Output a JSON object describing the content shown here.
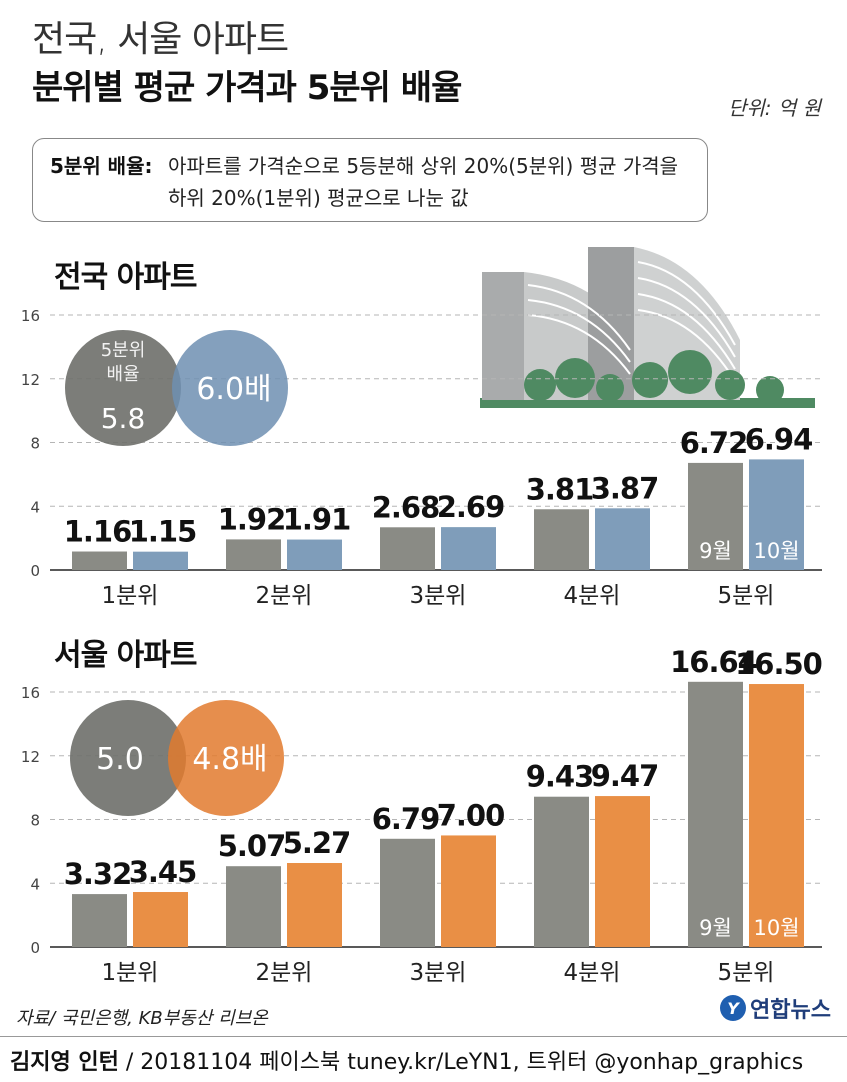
{
  "header": {
    "title_light": "전국, 서울 아파트",
    "title_bold": "분위별 평균 가격과 5분위 배율",
    "unit": "단위: 억 원"
  },
  "definition": {
    "label": "5분위 배율:",
    "line1": "아파트를 가격순으로 5등분해 상위 20%(5분위) 평균 가격을",
    "line2": "하위 20%(1분위) 평균으로 나눈 값"
  },
  "footer": {
    "source": "자료/ 국민은행, KB부동산 리브온",
    "credit_name": "김지영 인턴",
    "credit_rest": " / 20181104 페이스북 tuney.kr/LeYN1, 트위터 @yonhap_graphics",
    "logo_text": "연합뉴스"
  },
  "colors": {
    "gray": "#8a8b85",
    "blue": "#7f9dba",
    "orange": "#e98f45",
    "circle_gray": "#6e6f6a",
    "circle_blue": "#6f8fb1",
    "circle_orange": "#e27a2e"
  },
  "chart_data": [
    {
      "type": "bar",
      "section_title": "전국 아파트",
      "categories": [
        "1분위",
        "2분위",
        "3분위",
        "4분위",
        "5분위"
      ],
      "series": [
        {
          "name": "9월",
          "values": [
            1.16,
            1.92,
            2.68,
            3.81,
            6.72
          ],
          "labels": [
            "1.16",
            "1.92",
            "2.68",
            "3.81",
            "6.72"
          ]
        },
        {
          "name": "10월",
          "values": [
            1.15,
            1.91,
            2.69,
            3.87,
            6.94
          ],
          "labels": [
            "1.15",
            "1.91",
            "2.69",
            "3.87",
            "6.94"
          ]
        }
      ],
      "yticks": [
        "0",
        "4",
        "8",
        "12",
        "16"
      ],
      "ylim": [
        0,
        16
      ],
      "ratio": {
        "left_label": "5분위\n배율",
        "left_value": "5.8",
        "right_value": "6.0배"
      }
    },
    {
      "type": "bar",
      "section_title": "서울 아파트",
      "categories": [
        "1분위",
        "2분위",
        "3분위",
        "4분위",
        "5분위"
      ],
      "series": [
        {
          "name": "9월",
          "values": [
            3.32,
            5.07,
            6.79,
            9.43,
            16.64
          ],
          "labels": [
            "3.32",
            "5.07",
            "6.79",
            "9.43",
            "16.64"
          ]
        },
        {
          "name": "10월",
          "values": [
            3.45,
            5.27,
            7.0,
            9.47,
            16.5
          ],
          "labels": [
            "3.45",
            "5.27",
            "7.00",
            "9.47",
            "16.50"
          ]
        }
      ],
      "yticks": [
        "0",
        "4",
        "8",
        "12",
        "16"
      ],
      "ylim": [
        0,
        16
      ],
      "ratio": {
        "left_label": "",
        "left_value": "5.0",
        "right_value": "4.8배"
      }
    }
  ]
}
